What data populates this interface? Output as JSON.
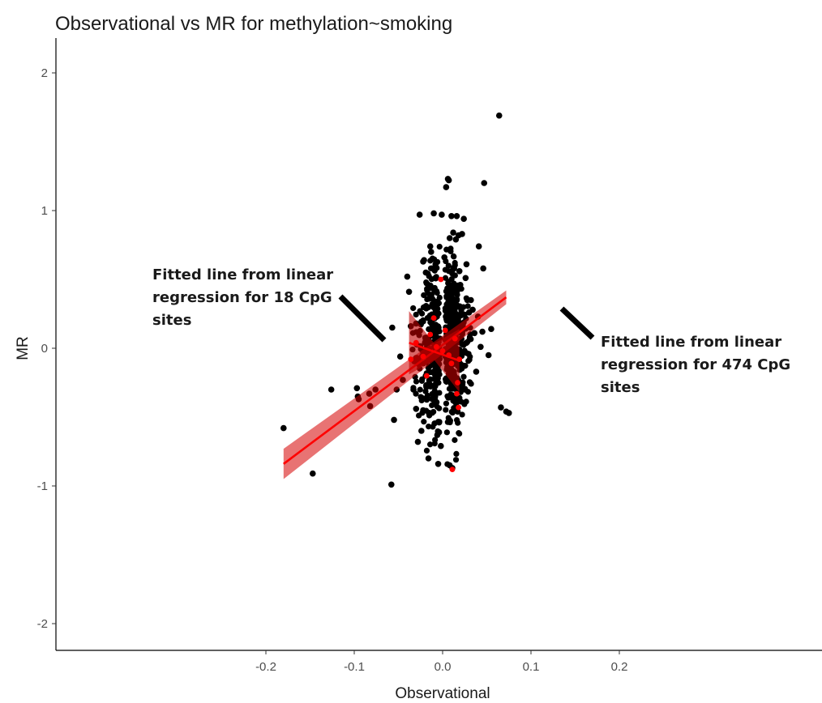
{
  "chart_data": {
    "type": "scatter",
    "title": "Observational vs MR for methylation~smoking",
    "xlabel": "Observational",
    "ylabel": "MR",
    "xlim": [
      -0.22,
      0.22
    ],
    "ylim": [
      -2.2,
      2.2
    ],
    "x_ticks": [
      -0.2,
      -0.1,
      0.0,
      0.1,
      0.2
    ],
    "x_tick_labels": [
      "-0.2",
      "-0.1",
      "0.0",
      "0.1",
      "0.2"
    ],
    "y_ticks": [
      -2,
      -1,
      0,
      1,
      2
    ],
    "y_tick_labels": [
      "-2",
      "-1",
      "0",
      "1",
      "2"
    ],
    "grid": false,
    "series": [
      {
        "color": "#000000",
        "points": [
          [
            -0.18,
            -0.58
          ],
          [
            -0.147,
            -0.91
          ],
          [
            -0.126,
            -0.3
          ],
          [
            -0.097,
            -0.29
          ],
          [
            -0.096,
            -0.35
          ],
          [
            -0.095,
            -0.37
          ],
          [
            -0.083,
            -0.33
          ],
          [
            -0.082,
            -0.42
          ],
          [
            -0.076,
            -0.3
          ],
          [
            -0.058,
            -0.99
          ],
          [
            -0.057,
            0.15
          ],
          [
            -0.055,
            -0.52
          ],
          [
            -0.052,
            -0.3
          ],
          [
            -0.048,
            -0.06
          ],
          [
            -0.045,
            -0.23
          ],
          [
            -0.04,
            0.52
          ],
          [
            -0.038,
            0.41
          ],
          [
            -0.036,
            0.16
          ],
          [
            -0.033,
            -0.3
          ],
          [
            -0.03,
            0.18
          ],
          [
            -0.03,
            -0.44
          ],
          [
            -0.028,
            -0.68
          ],
          [
            -0.026,
            0.97
          ],
          [
            -0.024,
            -0.6
          ],
          [
            -0.022,
            0.63
          ],
          [
            -0.021,
            0.64
          ],
          [
            -0.019,
            0.55
          ],
          [
            -0.016,
            0.46
          ],
          [
            -0.014,
            0.74
          ],
          [
            -0.013,
            0.7
          ],
          [
            -0.012,
            0.58
          ],
          [
            -0.01,
            0.98
          ],
          [
            -0.008,
            0.61
          ],
          [
            -0.006,
            -0.63
          ],
          [
            -0.004,
            -0.61
          ],
          [
            -0.002,
            -0.71
          ],
          [
            -0.001,
            0.97
          ],
          [
            0.002,
            0.66
          ],
          [
            0.004,
            1.17
          ],
          [
            0.006,
            1.23
          ],
          [
            0.007,
            1.22
          ],
          [
            0.008,
            0.8
          ],
          [
            0.01,
            0.96
          ],
          [
            0.012,
            0.84
          ],
          [
            0.013,
            0.58
          ],
          [
            0.015,
            0.79
          ],
          [
            0.016,
            0.96
          ],
          [
            0.018,
            0.82
          ],
          [
            0.019,
            0.56
          ],
          [
            0.02,
            0.46
          ],
          [
            0.022,
            0.83
          ],
          [
            0.024,
            0.94
          ],
          [
            0.026,
            0.51
          ],
          [
            0.027,
            0.61
          ],
          [
            0.028,
            0.35
          ],
          [
            0.03,
            0.26
          ],
          [
            0.032,
            0.35
          ],
          [
            0.034,
            0.28
          ],
          [
            0.036,
            0.11
          ],
          [
            0.038,
            -0.17
          ],
          [
            0.04,
            0.23
          ],
          [
            0.041,
            0.74
          ],
          [
            0.043,
            0.01
          ],
          [
            0.045,
            0.12
          ],
          [
            0.046,
            0.58
          ],
          [
            0.047,
            1.2
          ],
          [
            0.052,
            -0.05
          ],
          [
            0.055,
            0.14
          ],
          [
            0.064,
            1.69
          ],
          [
            0.066,
            -0.43
          ],
          [
            0.072,
            -0.46
          ],
          [
            0.075,
            -0.47
          ],
          [
            0.011,
            -0.87
          ],
          [
            0.017,
            -0.46
          ],
          [
            -0.005,
            -0.84
          ],
          [
            0.008,
            -0.85
          ],
          [
            -0.016,
            -0.8
          ],
          [
            0.021,
            -0.3
          ],
          [
            -0.02,
            0.04
          ],
          [
            0.025,
            -0.03
          ]
        ],
        "cluster_points": [
          [
            -0.032,
            0.02,
            0.05,
            0.22
          ],
          [
            -0.024,
            0.0,
            0.11,
            0.3
          ],
          [
            -0.017,
            -0.02,
            0.22,
            0.3
          ],
          [
            -0.011,
            0.0,
            0.34,
            0.3
          ],
          [
            -0.006,
            0.02,
            0.4,
            0.27
          ],
          [
            0.006,
            0.04,
            0.43,
            0.27
          ],
          [
            0.011,
            0.05,
            0.38,
            0.28
          ],
          [
            0.015,
            0.03,
            0.28,
            0.28
          ],
          [
            0.019,
            -0.01,
            0.18,
            0.24
          ],
          [
            0.024,
            0.01,
            0.11,
            0.22
          ],
          [
            0.03,
            0.02,
            0.06,
            0.16
          ]
        ]
      },
      {
        "color": "#ff0000",
        "points": [
          [
            -0.036,
            -0.08
          ],
          [
            -0.03,
            0.04
          ],
          [
            -0.022,
            -0.06
          ],
          [
            -0.014,
            0.1
          ],
          [
            -0.007,
            0.01
          ],
          [
            0.0,
            -0.02
          ],
          [
            0.003,
            0.13
          ],
          [
            0.01,
            -0.11
          ],
          [
            0.011,
            -0.88
          ],
          [
            0.017,
            -0.25
          ],
          [
            0.018,
            -0.43
          ],
          [
            0.019,
            -0.08
          ],
          [
            0.014,
            0.07
          ],
          [
            -0.002,
            0.5
          ],
          [
            0.007,
            -0.05
          ],
          [
            -0.018,
            -0.2
          ],
          [
            0.016,
            -0.33
          ],
          [
            -0.01,
            0.22
          ]
        ]
      }
    ],
    "fits": [
      {
        "label": "Fitted line from linear regression for 474 CpG sites",
        "x": [
          -0.18,
          0.072
        ],
        "y": [
          -0.84,
          0.37
        ],
        "ci_lower_half": [
          0.11,
          0.05
        ]
      },
      {
        "label": "Fitted line from linear regression for 18 CpG sites",
        "x": [
          -0.038,
          0.019
        ],
        "y": [
          0.04,
          -0.09
        ],
        "ci_lower_half": [
          0.23,
          0.23
        ],
        "ci_mid_half": 0.06
      }
    ],
    "annotations": [
      {
        "lines": [
          "Fitted line from linear",
          "regression for 18 CpG",
          "sites"
        ]
      },
      {
        "lines": [
          "Fitted line from linear",
          "regression for 474 CpG",
          "sites"
        ]
      }
    ]
  }
}
